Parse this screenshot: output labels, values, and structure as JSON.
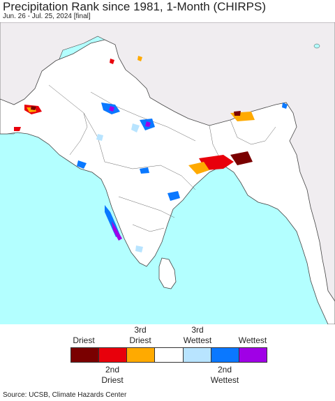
{
  "title": "Precipitation Rank since 1981, 1-Month (CHIRPS)",
  "subtitle": "Jun. 26 - Jul. 25, 2024 [final]",
  "legend": {
    "top_labels": [
      "Driest",
      "3rd\nDriest",
      "3rd\nWettest",
      "Wettest"
    ],
    "bottom_labels": [
      "2nd\nDriest",
      "2nd\nWettest"
    ],
    "colors": [
      "#7a0000",
      "#e8000b",
      "#ffaa00",
      "#ffffff",
      "#b8e4ff",
      "#0a78ff",
      "#a000e6"
    ]
  },
  "map_colors": {
    "ocean": "#b3ffff",
    "land": "#ffffff",
    "outside": "#f0edf0",
    "border": "#444444"
  },
  "source": "Source: UCSB, Climate Hazards Center"
}
